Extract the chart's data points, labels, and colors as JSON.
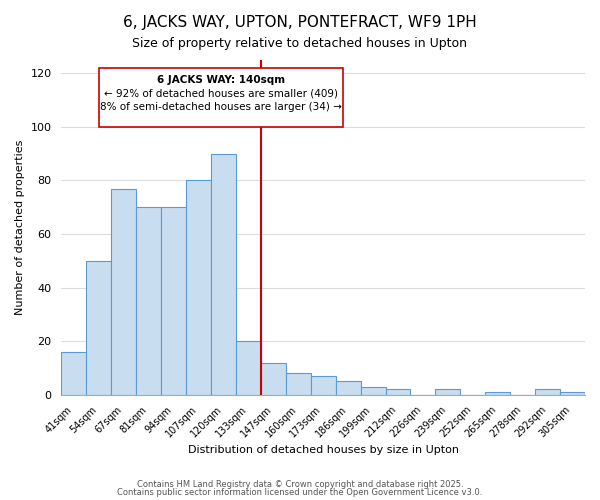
{
  "title": "6, JACKS WAY, UPTON, PONTEFRACT, WF9 1PH",
  "subtitle": "Size of property relative to detached houses in Upton",
  "xlabel": "Distribution of detached houses by size in Upton",
  "ylabel": "Number of detached properties",
  "bar_labels": [
    "41sqm",
    "54sqm",
    "67sqm",
    "81sqm",
    "94sqm",
    "107sqm",
    "120sqm",
    "133sqm",
    "147sqm",
    "160sqm",
    "173sqm",
    "186sqm",
    "199sqm",
    "212sqm",
    "226sqm",
    "239sqm",
    "252sqm",
    "265sqm",
    "278sqm",
    "292sqm",
    "305sqm"
  ],
  "bar_heights": [
    16,
    50,
    77,
    70,
    70,
    80,
    90,
    20,
    12,
    8,
    7,
    5,
    3,
    2,
    0,
    2,
    0,
    1,
    0,
    2,
    1
  ],
  "bar_color": "#c9ddf0",
  "bar_edge_color": "#5b9bd5",
  "vline_x": 8.0,
  "vline_color": "#cc0000",
  "annotation_title": "6 JACKS WAY: 140sqm",
  "annotation_line1": "← 92% of detached houses are smaller (409)",
  "annotation_line2": "8% of semi-detached houses are larger (34) →",
  "ylim": [
    0,
    125
  ],
  "footer1": "Contains HM Land Registry data © Crown copyright and database right 2025.",
  "footer2": "Contains public sector information licensed under the Open Government Licence v3.0.",
  "bg_color": "#ffffff",
  "grid_color": "#dddddd"
}
